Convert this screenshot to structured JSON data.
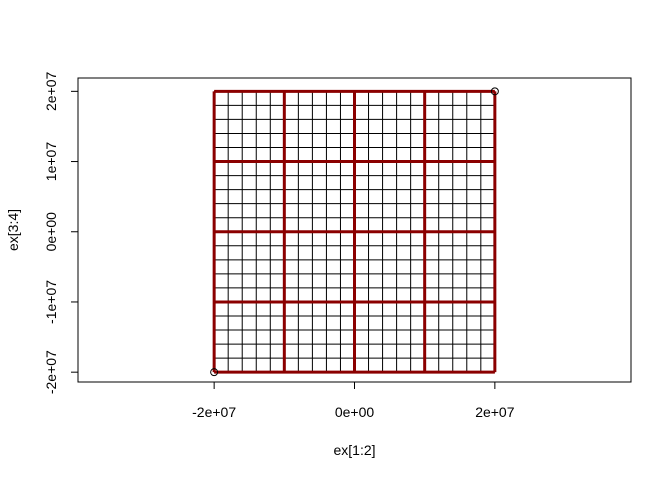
{
  "chart_data": {
    "type": "scatter",
    "title": "",
    "xlabel": "ex[1:2]",
    "ylabel": "ex[3:4]",
    "xlim": [
      -39400000,
      39400000
    ],
    "ylim": [
      -21400000,
      21900000
    ],
    "x_ticks": [
      {
        "value": -20000000,
        "label": "-2e+07"
      },
      {
        "value": 0,
        "label": "0e+00"
      },
      {
        "value": 20000000,
        "label": "2e+07"
      }
    ],
    "y_ticks": [
      {
        "value": -20000000,
        "label": "-2e+07"
      },
      {
        "value": -10000000,
        "label": "-1e+07"
      },
      {
        "value": 0,
        "label": "0e+00"
      },
      {
        "value": 10000000,
        "label": "1e+07"
      },
      {
        "value": 20000000,
        "label": "2e+07"
      }
    ],
    "points": [
      {
        "x": -20000000,
        "y": -20000000
      },
      {
        "x": 20000000,
        "y": 20000000
      }
    ],
    "fine_grid": {
      "extent": [
        -20000000,
        20000000,
        -20000000,
        20000000
      ],
      "cols": 20,
      "rows": 20,
      "color": "#000000"
    },
    "coarse_grid": {
      "extent": [
        -20000000,
        20000000,
        -20000000,
        20000000
      ],
      "cols": 4,
      "rows": 4,
      "color": "#8b0000"
    },
    "grid": false,
    "legend": "none"
  }
}
